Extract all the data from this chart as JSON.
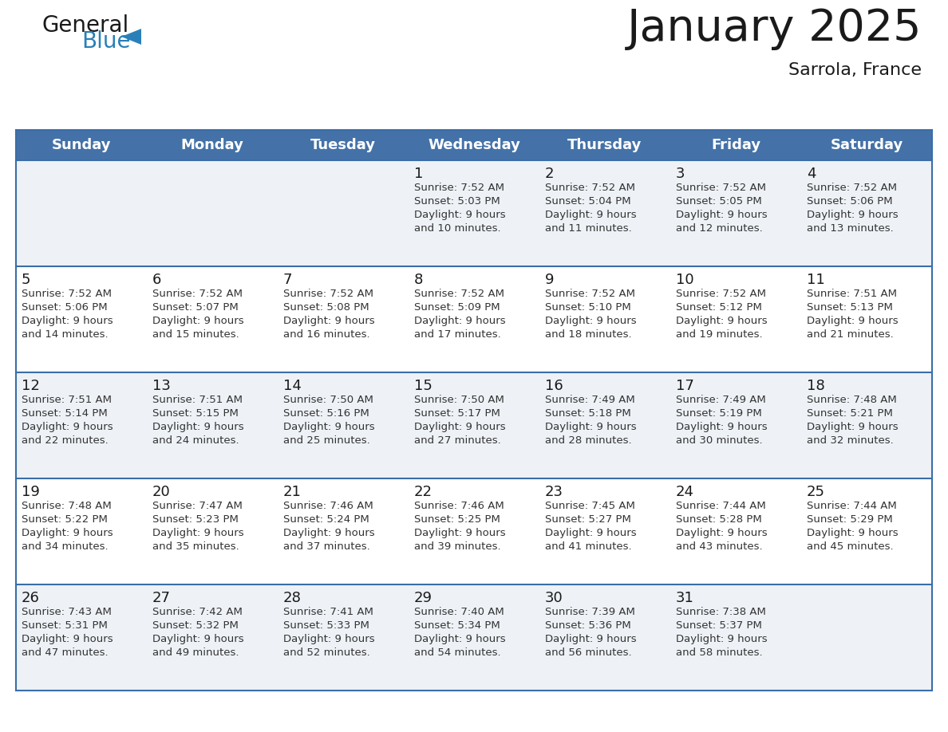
{
  "title": "January 2025",
  "subtitle": "Sarrola, France",
  "header_color": "#4472a8",
  "header_text_color": "#ffffff",
  "day_names": [
    "Sunday",
    "Monday",
    "Tuesday",
    "Wednesday",
    "Thursday",
    "Friday",
    "Saturday"
  ],
  "weeks": [
    [
      {
        "day": "",
        "sunrise": "",
        "sunset": "",
        "daylight1": "",
        "daylight2": ""
      },
      {
        "day": "",
        "sunrise": "",
        "sunset": "",
        "daylight1": "",
        "daylight2": ""
      },
      {
        "day": "",
        "sunrise": "",
        "sunset": "",
        "daylight1": "",
        "daylight2": ""
      },
      {
        "day": "1",
        "sunrise": "Sunrise: 7:52 AM",
        "sunset": "Sunset: 5:03 PM",
        "daylight1": "Daylight: 9 hours",
        "daylight2": "and 10 minutes."
      },
      {
        "day": "2",
        "sunrise": "Sunrise: 7:52 AM",
        "sunset": "Sunset: 5:04 PM",
        "daylight1": "Daylight: 9 hours",
        "daylight2": "and 11 minutes."
      },
      {
        "day": "3",
        "sunrise": "Sunrise: 7:52 AM",
        "sunset": "Sunset: 5:05 PM",
        "daylight1": "Daylight: 9 hours",
        "daylight2": "and 12 minutes."
      },
      {
        "day": "4",
        "sunrise": "Sunrise: 7:52 AM",
        "sunset": "Sunset: 5:06 PM",
        "daylight1": "Daylight: 9 hours",
        "daylight2": "and 13 minutes."
      }
    ],
    [
      {
        "day": "5",
        "sunrise": "Sunrise: 7:52 AM",
        "sunset": "Sunset: 5:06 PM",
        "daylight1": "Daylight: 9 hours",
        "daylight2": "and 14 minutes."
      },
      {
        "day": "6",
        "sunrise": "Sunrise: 7:52 AM",
        "sunset": "Sunset: 5:07 PM",
        "daylight1": "Daylight: 9 hours",
        "daylight2": "and 15 minutes."
      },
      {
        "day": "7",
        "sunrise": "Sunrise: 7:52 AM",
        "sunset": "Sunset: 5:08 PM",
        "daylight1": "Daylight: 9 hours",
        "daylight2": "and 16 minutes."
      },
      {
        "day": "8",
        "sunrise": "Sunrise: 7:52 AM",
        "sunset": "Sunset: 5:09 PM",
        "daylight1": "Daylight: 9 hours",
        "daylight2": "and 17 minutes."
      },
      {
        "day": "9",
        "sunrise": "Sunrise: 7:52 AM",
        "sunset": "Sunset: 5:10 PM",
        "daylight1": "Daylight: 9 hours",
        "daylight2": "and 18 minutes."
      },
      {
        "day": "10",
        "sunrise": "Sunrise: 7:52 AM",
        "sunset": "Sunset: 5:12 PM",
        "daylight1": "Daylight: 9 hours",
        "daylight2": "and 19 minutes."
      },
      {
        "day": "11",
        "sunrise": "Sunrise: 7:51 AM",
        "sunset": "Sunset: 5:13 PM",
        "daylight1": "Daylight: 9 hours",
        "daylight2": "and 21 minutes."
      }
    ],
    [
      {
        "day": "12",
        "sunrise": "Sunrise: 7:51 AM",
        "sunset": "Sunset: 5:14 PM",
        "daylight1": "Daylight: 9 hours",
        "daylight2": "and 22 minutes."
      },
      {
        "day": "13",
        "sunrise": "Sunrise: 7:51 AM",
        "sunset": "Sunset: 5:15 PM",
        "daylight1": "Daylight: 9 hours",
        "daylight2": "and 24 minutes."
      },
      {
        "day": "14",
        "sunrise": "Sunrise: 7:50 AM",
        "sunset": "Sunset: 5:16 PM",
        "daylight1": "Daylight: 9 hours",
        "daylight2": "and 25 minutes."
      },
      {
        "day": "15",
        "sunrise": "Sunrise: 7:50 AM",
        "sunset": "Sunset: 5:17 PM",
        "daylight1": "Daylight: 9 hours",
        "daylight2": "and 27 minutes."
      },
      {
        "day": "16",
        "sunrise": "Sunrise: 7:49 AM",
        "sunset": "Sunset: 5:18 PM",
        "daylight1": "Daylight: 9 hours",
        "daylight2": "and 28 minutes."
      },
      {
        "day": "17",
        "sunrise": "Sunrise: 7:49 AM",
        "sunset": "Sunset: 5:19 PM",
        "daylight1": "Daylight: 9 hours",
        "daylight2": "and 30 minutes."
      },
      {
        "day": "18",
        "sunrise": "Sunrise: 7:48 AM",
        "sunset": "Sunset: 5:21 PM",
        "daylight1": "Daylight: 9 hours",
        "daylight2": "and 32 minutes."
      }
    ],
    [
      {
        "day": "19",
        "sunrise": "Sunrise: 7:48 AM",
        "sunset": "Sunset: 5:22 PM",
        "daylight1": "Daylight: 9 hours",
        "daylight2": "and 34 minutes."
      },
      {
        "day": "20",
        "sunrise": "Sunrise: 7:47 AM",
        "sunset": "Sunset: 5:23 PM",
        "daylight1": "Daylight: 9 hours",
        "daylight2": "and 35 minutes."
      },
      {
        "day": "21",
        "sunrise": "Sunrise: 7:46 AM",
        "sunset": "Sunset: 5:24 PM",
        "daylight1": "Daylight: 9 hours",
        "daylight2": "and 37 minutes."
      },
      {
        "day": "22",
        "sunrise": "Sunrise: 7:46 AM",
        "sunset": "Sunset: 5:25 PM",
        "daylight1": "Daylight: 9 hours",
        "daylight2": "and 39 minutes."
      },
      {
        "day": "23",
        "sunrise": "Sunrise: 7:45 AM",
        "sunset": "Sunset: 5:27 PM",
        "daylight1": "Daylight: 9 hours",
        "daylight2": "and 41 minutes."
      },
      {
        "day": "24",
        "sunrise": "Sunrise: 7:44 AM",
        "sunset": "Sunset: 5:28 PM",
        "daylight1": "Daylight: 9 hours",
        "daylight2": "and 43 minutes."
      },
      {
        "day": "25",
        "sunrise": "Sunrise: 7:44 AM",
        "sunset": "Sunset: 5:29 PM",
        "daylight1": "Daylight: 9 hours",
        "daylight2": "and 45 minutes."
      }
    ],
    [
      {
        "day": "26",
        "sunrise": "Sunrise: 7:43 AM",
        "sunset": "Sunset: 5:31 PM",
        "daylight1": "Daylight: 9 hours",
        "daylight2": "and 47 minutes."
      },
      {
        "day": "27",
        "sunrise": "Sunrise: 7:42 AM",
        "sunset": "Sunset: 5:32 PM",
        "daylight1": "Daylight: 9 hours",
        "daylight2": "and 49 minutes."
      },
      {
        "day": "28",
        "sunrise": "Sunrise: 7:41 AM",
        "sunset": "Sunset: 5:33 PM",
        "daylight1": "Daylight: 9 hours",
        "daylight2": "and 52 minutes."
      },
      {
        "day": "29",
        "sunrise": "Sunrise: 7:40 AM",
        "sunset": "Sunset: 5:34 PM",
        "daylight1": "Daylight: 9 hours",
        "daylight2": "and 54 minutes."
      },
      {
        "day": "30",
        "sunrise": "Sunrise: 7:39 AM",
        "sunset": "Sunset: 5:36 PM",
        "daylight1": "Daylight: 9 hours",
        "daylight2": "and 56 minutes."
      },
      {
        "day": "31",
        "sunrise": "Sunrise: 7:38 AM",
        "sunset": "Sunset: 5:37 PM",
        "daylight1": "Daylight: 9 hours",
        "daylight2": "and 58 minutes."
      },
      {
        "day": "",
        "sunrise": "",
        "sunset": "",
        "daylight1": "",
        "daylight2": ""
      }
    ]
  ],
  "bg_color": "#ffffff",
  "row_bg_color": "#eef2f7",
  "grid_line_color": "#3a6ea8",
  "text_color": "#333333",
  "day_number_color": "#1a1a1a",
  "logo_color1": "#1a1a1a",
  "logo_color2": "#2980b9",
  "title_fontsize": 40,
  "subtitle_fontsize": 16,
  "header_fontsize": 13,
  "day_num_fontsize": 13,
  "cell_fontsize": 9.5
}
